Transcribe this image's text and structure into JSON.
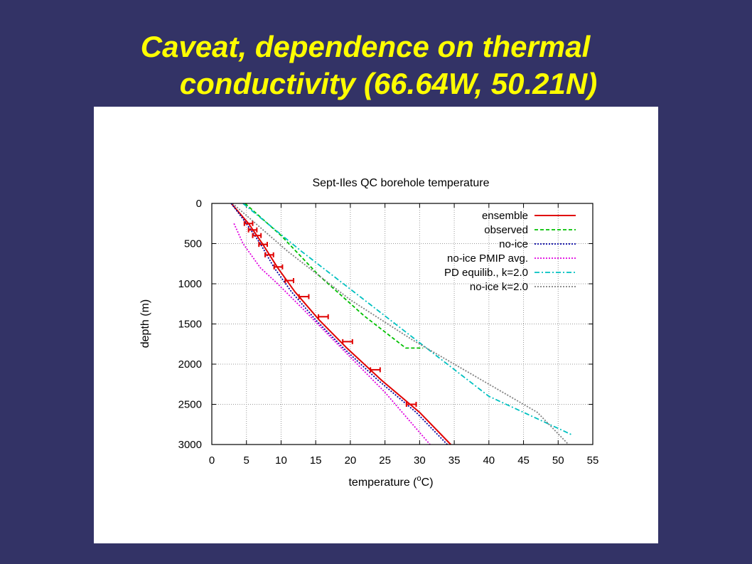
{
  "slide": {
    "title_line1": "Caveat, dependence on thermal",
    "title_line2": "conductivity (66.64W, 50.21N)",
    "title_color": "#ffff00",
    "background_color": "#333366"
  },
  "chart_data": {
    "type": "line",
    "title": "Sept-Iles QC borehole temperature",
    "xlabel_prefix": "temperature (",
    "xlabel_sup": "o",
    "xlabel_suffix": "C)",
    "ylabel": "depth (m)",
    "xlim": [
      0,
      55
    ],
    "ylim": [
      0,
      3000
    ],
    "y_inverted": true,
    "grid": true,
    "legend_position": "top-right",
    "x_ticks": [
      0,
      5,
      10,
      15,
      20,
      25,
      30,
      35,
      40,
      45,
      50,
      55
    ],
    "y_ticks": [
      0,
      500,
      1000,
      1500,
      2000,
      2500,
      3000
    ],
    "series": [
      {
        "name": "ensemble",
        "color": "#e00000",
        "dash": "solid",
        "points": [
          [
            2.8,
            0
          ],
          [
            5.3,
            250
          ],
          [
            7.3,
            500
          ],
          [
            9.5,
            800
          ],
          [
            12,
            1100
          ],
          [
            15.5,
            1450
          ],
          [
            19.5,
            1800
          ],
          [
            24.5,
            2200
          ],
          [
            30,
            2600
          ],
          [
            34.5,
            3000
          ]
        ]
      },
      {
        "name": "observed",
        "color": "#00c000",
        "dash": "dashed",
        "points": [
          [
            4.8,
            0
          ],
          [
            10,
            400
          ],
          [
            15.5,
            900
          ],
          [
            22,
            1400
          ],
          [
            28,
            1800
          ],
          [
            30.5,
            1800
          ]
        ]
      },
      {
        "name": "no-ice",
        "color": "#0000a0",
        "dash": "dotted",
        "points": [
          [
            2.8,
            0
          ],
          [
            5,
            250
          ],
          [
            7,
            500
          ],
          [
            9,
            800
          ],
          [
            11.5,
            1100
          ],
          [
            15,
            1450
          ],
          [
            19,
            1800
          ],
          [
            24,
            2200
          ],
          [
            29.5,
            2600
          ],
          [
            34,
            3000
          ]
        ]
      },
      {
        "name": "no-ice PMIP avg.",
        "color": "#e000e0",
        "dash": "dotted",
        "points": [
          [
            3.2,
            250
          ],
          [
            4.5,
            500
          ],
          [
            7,
            800
          ],
          [
            9.5,
            1000
          ],
          [
            13,
            1300
          ],
          [
            17,
            1650
          ],
          [
            21,
            2000
          ],
          [
            25,
            2350
          ],
          [
            28.5,
            2700
          ],
          [
            31.5,
            3000
          ]
        ]
      },
      {
        "name": "PD equilib., k=2.0",
        "color": "#00c0c0",
        "dash": "dashdot",
        "points": [
          [
            4.5,
            0
          ],
          [
            13,
            600
          ],
          [
            22,
            1200
          ],
          [
            31,
            1800
          ],
          [
            40,
            2400
          ],
          [
            52,
            2880
          ]
        ]
      },
      {
        "name": "no-ice k=2.0",
        "color": "#808080",
        "dash": "dotted",
        "points": [
          [
            3,
            0
          ],
          [
            11,
            600
          ],
          [
            20,
            1200
          ],
          [
            29,
            1700
          ],
          [
            38,
            2150
          ],
          [
            47,
            2600
          ],
          [
            51.5,
            3000
          ]
        ]
      }
    ],
    "ensemble_error_bars": [
      {
        "x": 5.3,
        "y": 250,
        "xerr": 0.6
      },
      {
        "x": 5.9,
        "y": 330,
        "xerr": 0.6
      },
      {
        "x": 6.5,
        "y": 400,
        "xerr": 0.6
      },
      {
        "x": 7.4,
        "y": 510,
        "xerr": 0.6
      },
      {
        "x": 8.3,
        "y": 640,
        "xerr": 0.6
      },
      {
        "x": 9.6,
        "y": 790,
        "xerr": 0.6
      },
      {
        "x": 11.2,
        "y": 960,
        "xerr": 0.6
      },
      {
        "x": 13.3,
        "y": 1160,
        "xerr": 0.7
      },
      {
        "x": 16.1,
        "y": 1410,
        "xerr": 0.7
      },
      {
        "x": 19.6,
        "y": 1720,
        "xerr": 0.7
      },
      {
        "x": 23.6,
        "y": 2070,
        "xerr": 0.7
      },
      {
        "x": 28.8,
        "y": 2500,
        "xerr": 0.7
      }
    ]
  }
}
